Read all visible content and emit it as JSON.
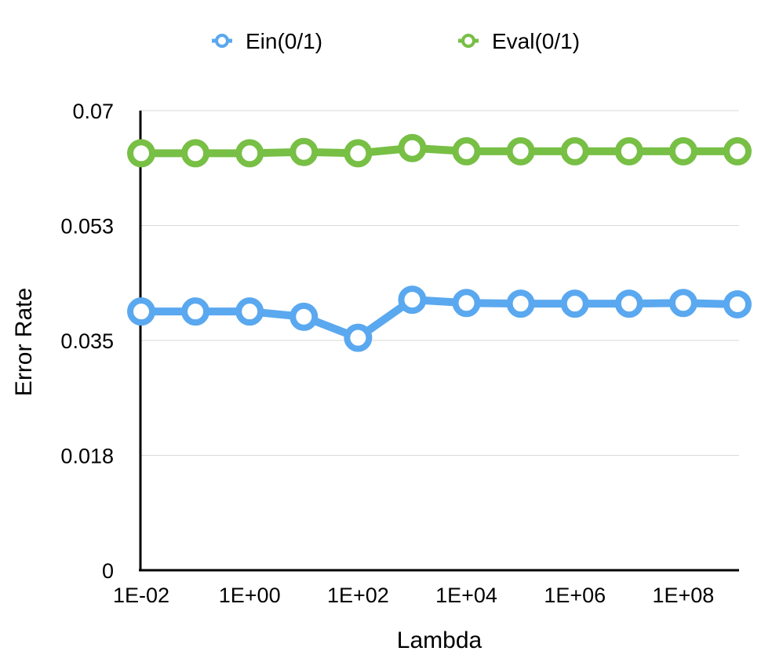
{
  "chart_data": {
    "type": "line",
    "title": "",
    "xlabel": "Lambda",
    "ylabel": "Error Rate",
    "x": [
      0.01,
      0.1,
      1,
      10,
      100,
      1000,
      10000,
      100000,
      1000000,
      10000000,
      100000000,
      1000000000
    ],
    "x_scale": "log",
    "x_tick_labels": [
      "1E-02",
      "1E+00",
      "1E+02",
      "1E+04",
      "1E+06",
      "1E+08"
    ],
    "y_tick_labels": [
      "0",
      "0.018",
      "0.035",
      "0.053",
      "0.07"
    ],
    "ylim": [
      0,
      0.07
    ],
    "grid": true,
    "legend_position": "top",
    "series": [
      {
        "name": "Ein(0/1)",
        "color": "#5aa8ef",
        "values": [
          0.0394,
          0.0394,
          0.0394,
          0.0386,
          0.0354,
          0.0412,
          0.0407,
          0.0406,
          0.0406,
          0.0406,
          0.0407,
          0.0405
        ]
      },
      {
        "name": "Eval(0/1)",
        "color": "#77bf45",
        "values": [
          0.0635,
          0.0635,
          0.0635,
          0.0637,
          0.0635,
          0.0643,
          0.0638,
          0.0638,
          0.0638,
          0.0638,
          0.0638,
          0.0638
        ]
      }
    ]
  }
}
